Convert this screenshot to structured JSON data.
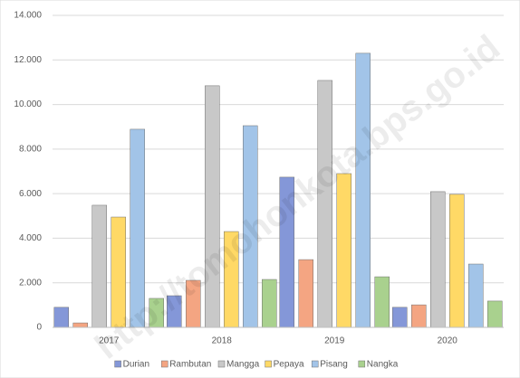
{
  "chart_data": {
    "type": "bar",
    "categories": [
      "2017",
      "2018",
      "2019",
      "2020"
    ],
    "series": [
      {
        "name": "Durian",
        "color": "#8497d8",
        "values": [
          900,
          1420,
          6740,
          900
        ]
      },
      {
        "name": "Rambutan",
        "color": "#f4a582",
        "values": [
          200,
          2110,
          3040,
          1010
        ]
      },
      {
        "name": "Mangga",
        "color": "#c8c8c8",
        "values": [
          5480,
          10840,
          11080,
          6090
        ]
      },
      {
        "name": "Pepaya",
        "color": "#ffd966",
        "values": [
          4950,
          4300,
          6900,
          5970
        ]
      },
      {
        "name": "Pisang",
        "color": "#a2c4e8",
        "values": [
          8890,
          9050,
          12300,
          2840
        ]
      },
      {
        "name": "Nangka",
        "color": "#a9d18e",
        "values": [
          1300,
          2150,
          2270,
          1180
        ]
      }
    ],
    "ylim": [
      0,
      14000
    ],
    "yticks": [
      0,
      {
        "value": 2000,
        "label": "2.000"
      },
      {
        "value": 4000,
        "label": "4.000"
      },
      {
        "value": 6000,
        "label": "6.000"
      },
      {
        "value": 8000,
        "label": "8.000"
      },
      {
        "value": 10000,
        "label": "10.000"
      },
      {
        "value": 12000,
        "label": "12.000"
      },
      {
        "value": 14000,
        "label": "14.000"
      }
    ],
    "grid": true,
    "legend": "bottom",
    "watermark": "http://tomohonkota.bps.go.id"
  }
}
